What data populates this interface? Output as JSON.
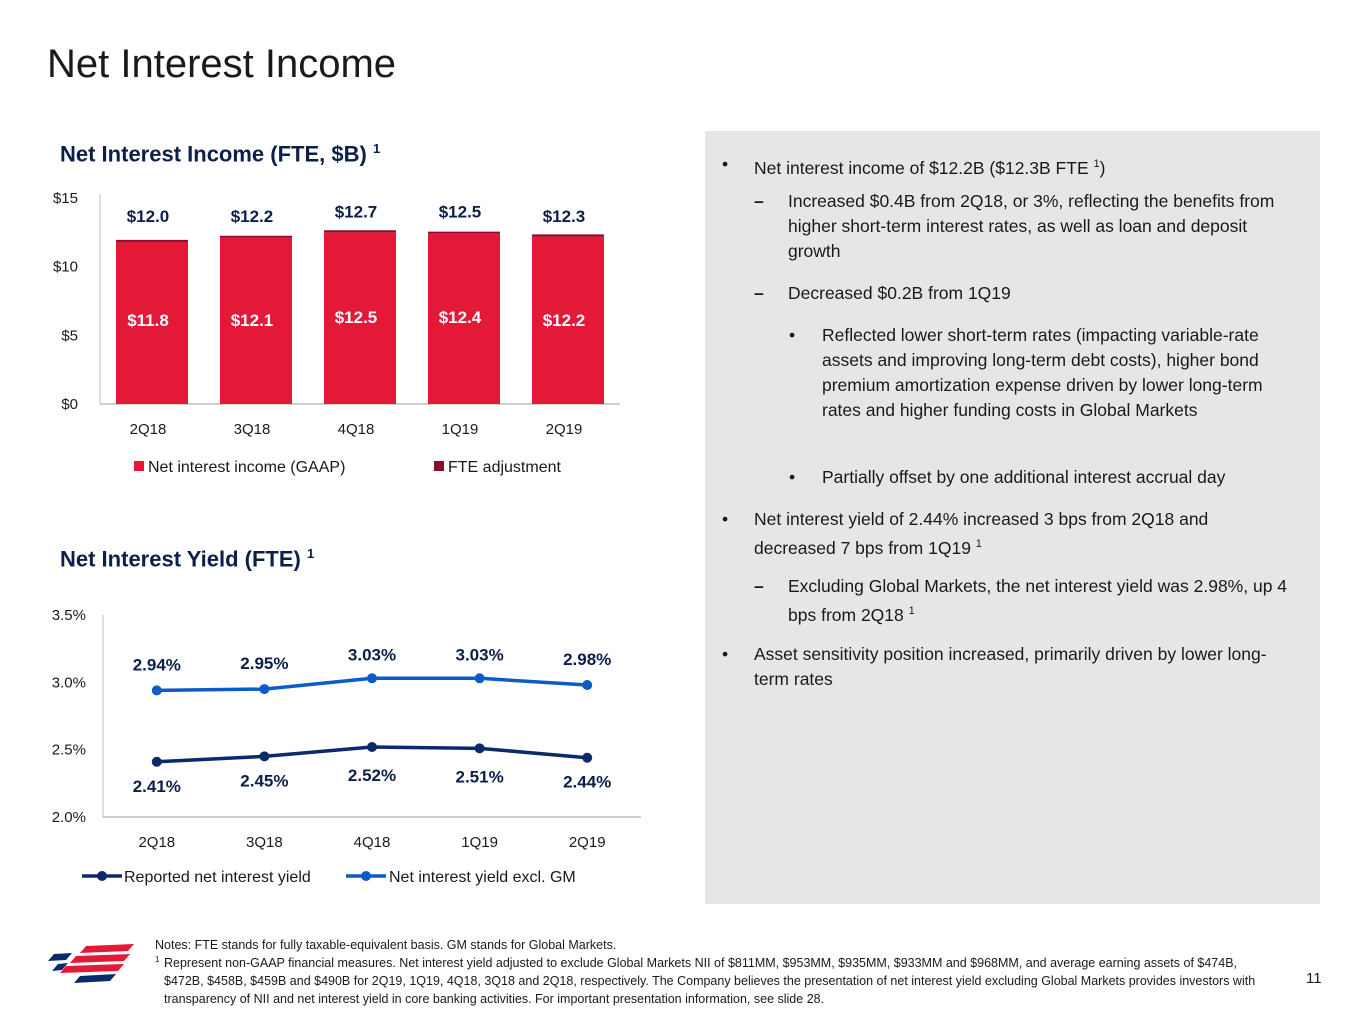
{
  "page_title": "Net Interest Income",
  "chart1": {
    "title": "Net Interest Income (FTE, $B)",
    "title_sup": "1",
    "y_ticks": [
      "$15",
      "$10",
      "$5",
      "$0"
    ],
    "legend": [
      "Net interest income (GAAP)",
      "FTE adjustment"
    ]
  },
  "chart2": {
    "title": "Net Interest Yield (FTE)",
    "title_sup": "1",
    "y_ticks": [
      "3.5%",
      "3.0%",
      "2.5%",
      "2.0%"
    ],
    "legend": [
      "Reported net interest yield",
      "Net interest yield excl. GM"
    ]
  },
  "chart_data": [
    {
      "type": "bar",
      "stacked": true,
      "title": "Net Interest Income (FTE, $B)",
      "categories": [
        "2Q18",
        "3Q18",
        "4Q18",
        "1Q19",
        "2Q19"
      ],
      "ylim": [
        0,
        15
      ],
      "series": [
        {
          "name": "Net interest income (GAAP)",
          "values": [
            11.8,
            12.1,
            12.5,
            12.4,
            12.2
          ],
          "labels": [
            "$11.8",
            "$12.1",
            "$12.5",
            "$12.4",
            "$12.2"
          ],
          "color": "#e31937"
        },
        {
          "name": "FTE adjustment",
          "values": [
            0.15,
            0.15,
            0.15,
            0.15,
            0.15
          ],
          "color": "#8b0d2a"
        }
      ],
      "totals": [
        "$12.0",
        "$12.2",
        "$12.7",
        "$12.5",
        "$12.3"
      ]
    },
    {
      "type": "line",
      "title": "Net Interest Yield (FTE)",
      "categories": [
        "2Q18",
        "3Q18",
        "4Q18",
        "1Q19",
        "2Q19"
      ],
      "ylim": [
        2.0,
        3.5
      ],
      "series": [
        {
          "name": "Reported net interest yield",
          "values": [
            2.41,
            2.45,
            2.52,
            2.51,
            2.44
          ],
          "labels": [
            "2.41%",
            "2.45%",
            "2.52%",
            "2.51%",
            "2.44%"
          ],
          "color": "#0b2a6b"
        },
        {
          "name": "Net interest yield excl. GM",
          "values": [
            2.94,
            2.95,
            3.03,
            3.03,
            2.98
          ],
          "labels": [
            "2.94%",
            "2.95%",
            "3.03%",
            "3.03%",
            "2.98%"
          ],
          "color": "#0b5cc6"
        }
      ]
    }
  ],
  "bullets": [
    {
      "level": 1,
      "marker": "•",
      "text": "Net interest income of $12.2B ($12.3B FTE ",
      "sup": "1",
      "after": ")"
    },
    {
      "level": 2,
      "marker": "–",
      "text": "Increased $0.4B from 2Q18, or 3%, reflecting the benefits from higher short-term interest rates, as well as loan and deposit growth"
    },
    {
      "level": 2,
      "marker": "–",
      "text": "Decreased $0.2B from 1Q19"
    },
    {
      "level": 3,
      "marker": "•",
      "text": "Reflected lower short-term rates (impacting variable-rate assets and improving long-term debt costs), higher bond premium amortization expense driven by lower long-term rates and higher funding costs in Global Markets"
    },
    {
      "level": 3,
      "marker": "•",
      "text": "Partially offset by one additional interest accrual day"
    },
    {
      "level": 1,
      "marker": "•",
      "text": "Net interest yield of 2.44% increased 3 bps from 2Q18 and decreased 7 bps from 1Q19 ",
      "sup": "1"
    },
    {
      "level": 2,
      "marker": "–",
      "text": "Excluding Global Markets, the net interest yield was 2.98%, up 4 bps from 2Q18 ",
      "sup": "1"
    },
    {
      "level": 1,
      "marker": "•",
      "text": "Asset sensitivity position increased, primarily driven by lower long-term rates"
    }
  ],
  "notes": {
    "line1": "Notes: FTE stands for fully taxable-equivalent basis. GM stands for Global Markets.",
    "sup": "1",
    "line2": "Represent non-GAAP financial measures. Net interest yield adjusted to exclude Global Markets NII of $811MM, $953MM, $935MM, $933MM and $968MM, and average earning assets of $474B, $472B, $458B, $459B and $490B for 2Q19, 1Q19, 4Q18, 3Q18 and 2Q18, respectively. The Company believes the presentation of net interest yield excluding Global Markets provides investors with transparency of NII and net interest yield in core banking activities. For important presentation information, see slide 28."
  },
  "page_number": "11",
  "logo": "bank-flag-logo",
  "colors": {
    "gaap": "#e31937",
    "fte": "#8b0d2a",
    "reported": "#0b2a6b",
    "excl_gm": "#0b5cc6",
    "panel": "#e6e6e6"
  }
}
